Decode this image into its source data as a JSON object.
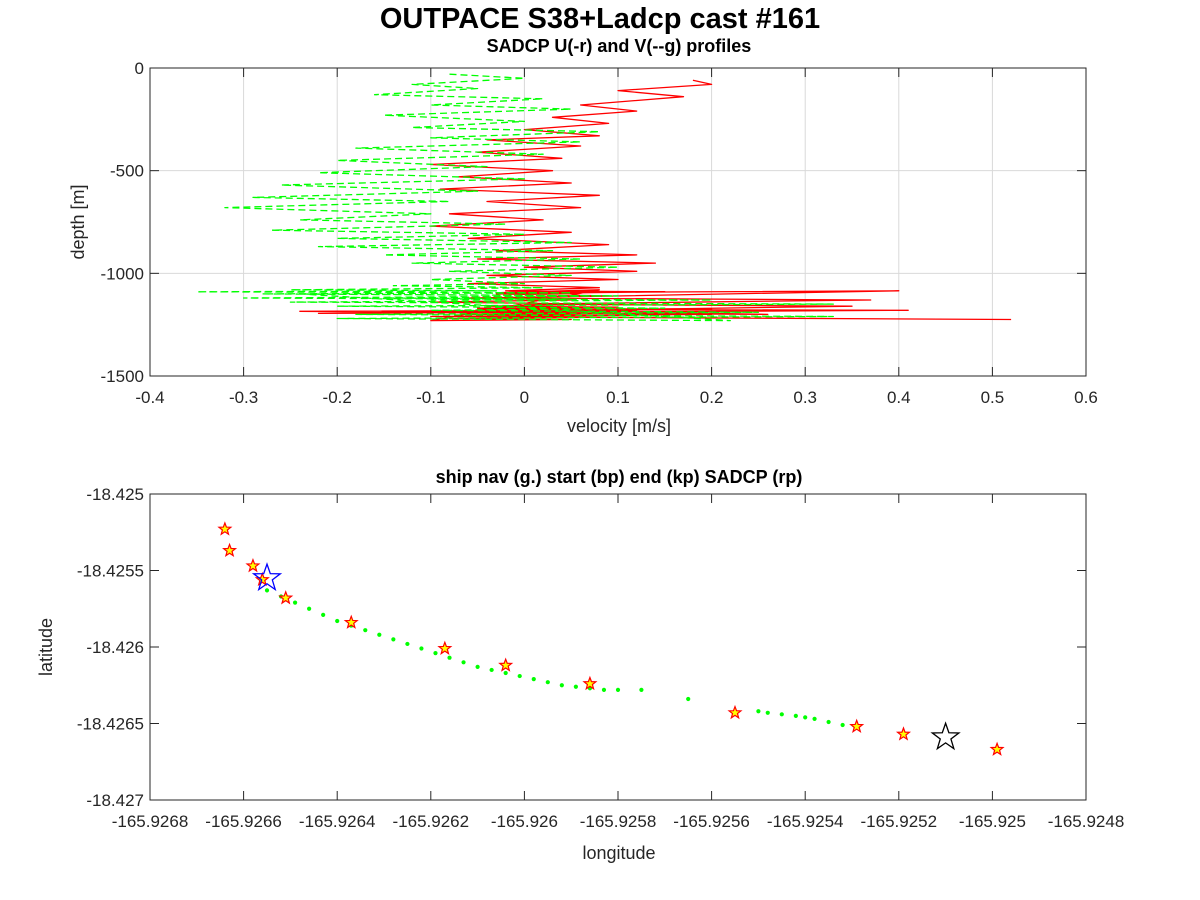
{
  "figure": {
    "title": "OUTPACE S38+Ladcp cast #161"
  },
  "colors": {
    "u": "#ff0000",
    "v": "#00ff00",
    "nav": "#00ff00",
    "start": "#0000ff",
    "end": "#000000",
    "sadcp": "#ff0000",
    "sadcp_face": "#ffff00",
    "grid": "#d9d9d9",
    "axes": "#262626"
  },
  "chart_data": [
    {
      "type": "line",
      "title": "SADCP U(-r) and V(--g) profiles",
      "xlabel": "velocity [m/s]",
      "ylabel": "depth [m]",
      "xlim": [
        -0.4,
        0.6
      ],
      "ylim": [
        -1500,
        0
      ],
      "xticks": [
        -0.4,
        -0.3,
        -0.2,
        -0.1,
        0,
        0.1,
        0.2,
        0.3,
        0.4,
        0.5,
        0.6
      ],
      "xtick_labels": [
        "-0.4",
        "-0.3",
        "-0.2",
        "-0.1",
        "0",
        "0.1",
        "0.2",
        "0.3",
        "0.4",
        "0.5",
        "0.6"
      ],
      "yticks": [
        -1500,
        -1000,
        -500,
        0
      ],
      "ytick_labels": [
        "-1500",
        "-1000",
        "-500",
        "0"
      ],
      "grid": true,
      "series": [
        {
          "line_style": "solid",
          "color": "#ff0000",
          "x": [
            0.18,
            0.2,
            0.1,
            0.17,
            0.06,
            0.12,
            0.03,
            0.09,
            0.0,
            0.08,
            -0.04,
            0.06,
            -0.05,
            0.04,
            -0.1,
            0.03,
            -0.07,
            0.05,
            -0.09,
            0.08,
            -0.04,
            0.06,
            -0.08,
            0.02,
            -0.1,
            0.05,
            -0.06,
            0.09,
            -0.03,
            0.12,
            -0.05,
            0.14,
            0.0,
            0.12,
            -0.04,
            0.1,
            -0.06,
            0.08,
            -0.02,
            0.15,
            -0.03,
            0.09,
            -0.06,
            0.05,
            -0.1,
            0.08,
            -0.04,
            0.1,
            -0.05,
            0.2,
            0.0,
            0.12,
            -0.04,
            0.1,
            -0.06,
            0.12,
            -0.03,
            0.06,
            -0.08,
            0.05,
            -0.1,
            0.08,
            -0.03,
            0.4,
            -0.02,
            0.37,
            0.0,
            0.35,
            -0.1,
            0.26,
            -0.05,
            0.41,
            -0.22,
            0.12,
            -0.24,
            0.2,
            -0.1,
            0.52
          ],
          "y": [
            -60,
            -80,
            -110,
            -140,
            -180,
            -210,
            -240,
            -270,
            -300,
            -330,
            -350,
            -380,
            -410,
            -440,
            -470,
            -500,
            -530,
            -560,
            -590,
            -620,
            -650,
            -680,
            -710,
            -740,
            -770,
            -800,
            -830,
            -860,
            -890,
            -910,
            -930,
            -950,
            -970,
            -990,
            -1010,
            -1030,
            -1050,
            -1070,
            -1085,
            -1090,
            -1100,
            -1110,
            -1120,
            -1130,
            -1140,
            -1150,
            -1160,
            -1165,
            -1170,
            -1175,
            -1180,
            -1185,
            -1190,
            -1195,
            -1200,
            -1205,
            -1210,
            -1215,
            -1220,
            -1225,
            -1230,
            -1080,
            -1095,
            -1085,
            -1120,
            -1130,
            -1150,
            -1160,
            -1190,
            -1200,
            -1175,
            -1180,
            -1195,
            -1180,
            -1185,
            -1200,
            -1210,
            -1225
          ]
        },
        {
          "line_style": "dashed",
          "color": "#00ff00",
          "x": [
            -0.08,
            0.0,
            -0.12,
            -0.05,
            -0.16,
            0.02,
            -0.1,
            0.05,
            -0.15,
            0.0,
            -0.12,
            0.08,
            -0.1,
            0.06,
            -0.18,
            0.02,
            -0.2,
            -0.04,
            -0.22,
            0.0,
            -0.26,
            -0.05,
            -0.29,
            -0.08,
            -0.32,
            -0.1,
            -0.24,
            -0.02,
            -0.27,
            0.0,
            -0.2,
            0.05,
            -0.22,
            0.03,
            -0.15,
            0.06,
            -0.12,
            0.1,
            -0.08,
            0.05,
            -0.1,
            0.0,
            -0.14,
            0.02,
            -0.25,
            -0.03,
            -0.35,
            0.05,
            -0.28,
            0.1,
            -0.3,
            0.2,
            -0.25,
            0.33,
            -0.2,
            0.15,
            -0.1,
            0.25,
            -0.18,
            0.33,
            -0.2,
            0.22,
            -0.24,
            0.1,
            -0.15,
            0.05,
            -0.1
          ],
          "y": [
            -30,
            -50,
            -80,
            -100,
            -130,
            -150,
            -180,
            -200,
            -230,
            -260,
            -290,
            -310,
            -340,
            -360,
            -390,
            -420,
            -450,
            -480,
            -510,
            -540,
            -570,
            -600,
            -630,
            -650,
            -680,
            -710,
            -740,
            -760,
            -790,
            -810,
            -830,
            -850,
            -870,
            -890,
            -910,
            -930,
            -950,
            -970,
            -990,
            -1010,
            -1030,
            -1050,
            -1060,
            -1070,
            -1080,
            -1085,
            -1090,
            -1095,
            -1100,
            -1110,
            -1120,
            -1130,
            -1140,
            -1150,
            -1160,
            -1170,
            -1180,
            -1190,
            -1200,
            -1210,
            -1220,
            -1230,
            -1100,
            -1110,
            -1120,
            -1125,
            -1130
          ]
        }
      ]
    },
    {
      "type": "scatter",
      "title": "ship nav (g.) start (bp) end (kp) SADCP (rp)",
      "xlabel": "longitude",
      "ylabel": "latitude",
      "xlim": [
        -165.9268,
        -165.9248
      ],
      "ylim": [
        -18.427,
        -18.425
      ],
      "xticks": [
        -165.9268,
        -165.9266,
        -165.9264,
        -165.9262,
        -165.926,
        -165.9258,
        -165.9256,
        -165.9254,
        -165.9252,
        -165.925,
        -165.9248
      ],
      "xtick_labels": [
        "-165.9268",
        "-165.9266",
        "-165.9264",
        "-165.9262",
        "-165.926",
        "-165.9258",
        "-165.9256",
        "-165.9254",
        "-165.9252",
        "-165.925",
        "-165.9248"
      ],
      "yticks": [
        -18.427,
        -18.4265,
        -18.426,
        -18.4255,
        -18.425
      ],
      "ytick_labels": [
        "-18.427",
        "-18.4265",
        "-18.426",
        "-18.4255",
        "-18.425"
      ],
      "grid": false,
      "series": [
        {
          "marker": "dot",
          "color": "#00ff00",
          "x": [
            -165.92655,
            -165.92652,
            -165.92649,
            -165.92646,
            -165.92643,
            -165.9264,
            -165.92637,
            -165.92634,
            -165.92631,
            -165.92628,
            -165.92625,
            -165.92622,
            -165.92619,
            -165.92616,
            -165.92613,
            -165.9261,
            -165.92607,
            -165.92604,
            -165.92601,
            -165.92598,
            -165.92595,
            -165.92592,
            -165.92589,
            -165.92586,
            -165.92583,
            -165.9258,
            -165.92575,
            -165.92565,
            -165.9255,
            -165.92548,
            -165.92545,
            -165.92542,
            -165.9254,
            -165.92538,
            -165.92535,
            -165.92532
          ],
          "y": [
            -18.42563,
            -18.42567,
            -18.42571,
            -18.42575,
            -18.42579,
            -18.42583,
            -18.42586,
            -18.42589,
            -18.42592,
            -18.42595,
            -18.42598,
            -18.42601,
            -18.42604,
            -18.42607,
            -18.4261,
            -18.42613,
            -18.42615,
            -18.42617,
            -18.42619,
            -18.42621,
            -18.42623,
            -18.42625,
            -18.42626,
            -18.42627,
            -18.42628,
            -18.42628,
            -18.42628,
            -18.42634,
            -18.42642,
            -18.42643,
            -18.42644,
            -18.42645,
            -18.42646,
            -18.42647,
            -18.42649,
            -18.42651
          ]
        },
        {
          "marker": "star",
          "color": "#ff0000",
          "x": [
            -165.92664,
            -165.92663,
            -165.92658,
            -165.92656,
            -165.92651,
            -165.92637,
            -165.92617,
            -165.92604,
            -165.92586,
            -165.92555,
            -165.92529,
            -165.92519,
            -165.92499
          ],
          "y": [
            -18.42523,
            -18.42537,
            -18.42547,
            -18.42556,
            -18.42568,
            -18.42584,
            -18.42601,
            -18.42612,
            -18.42624,
            -18.42643,
            -18.42652,
            -18.42657,
            -18.42667
          ]
        },
        {
          "marker": "star-large",
          "color": "#0000ff",
          "x": [
            -165.92655
          ],
          "y": [
            -18.42555
          ]
        },
        {
          "marker": "star-large",
          "color": "#000000",
          "x": [
            -165.9251
          ],
          "y": [
            -18.42659
          ]
        }
      ]
    }
  ]
}
